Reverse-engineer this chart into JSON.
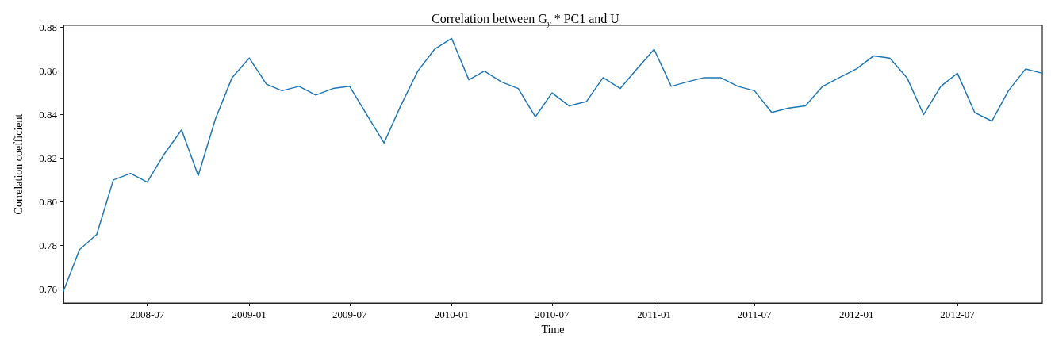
{
  "chart_data": {
    "type": "line",
    "title": "Correlation between G$_{y}$ * PC1 and U",
    "xlabel": "Time",
    "ylabel": "Correlation coefficient",
    "x": [
      "2008-02",
      "2008-03",
      "2008-04",
      "2008-05",
      "2008-06",
      "2008-07",
      "2008-08",
      "2008-09",
      "2008-10",
      "2008-11",
      "2008-12",
      "2009-01",
      "2009-02",
      "2009-03",
      "2009-04",
      "2009-05",
      "2009-06",
      "2009-07",
      "2009-08",
      "2009-09",
      "2009-10",
      "2009-11",
      "2009-12",
      "2010-01",
      "2010-02",
      "2010-03",
      "2010-04",
      "2010-05",
      "2010-06",
      "2010-07",
      "2010-08",
      "2010-09",
      "2010-10",
      "2010-11",
      "2010-12",
      "2011-01",
      "2011-02",
      "2011-03",
      "2011-04",
      "2011-05",
      "2011-06",
      "2011-07",
      "2011-08",
      "2011-09",
      "2011-10",
      "2011-11",
      "2011-12",
      "2012-01",
      "2012-02",
      "2012-03",
      "2012-04",
      "2012-05",
      "2012-06",
      "2012-07",
      "2012-08",
      "2012-09",
      "2012-10",
      "2012-11",
      "2012-12"
    ],
    "series": [
      {
        "color": "#1f77b4",
        "values": [
          0.759,
          0.778,
          0.785,
          0.81,
          0.813,
          0.809,
          0.822,
          0.833,
          0.812,
          0.838,
          0.857,
          0.866,
          0.854,
          0.851,
          0.853,
          0.849,
          0.852,
          0.853,
          0.84,
          0.827,
          0.844,
          0.86,
          0.87,
          0.875,
          0.856,
          0.86,
          0.855,
          0.852,
          0.839,
          0.85,
          0.844,
          0.846,
          0.857,
          0.852,
          0.861,
          0.87,
          0.853,
          0.855,
          0.857,
          0.857,
          0.853,
          0.851,
          0.841,
          0.843,
          0.844,
          0.853,
          0.857,
          0.861,
          0.867,
          0.866,
          0.857,
          0.84,
          0.853,
          0.859,
          0.841,
          0.837,
          0.851,
          0.861,
          0.859
        ]
      }
    ],
    "xlim": [
      "2008-02",
      "2012-12"
    ],
    "xticks": [
      "2008-07",
      "2009-01",
      "2009-07",
      "2010-01",
      "2010-07",
      "2011-01",
      "2011-07",
      "2012-01",
      "2012-07"
    ],
    "ylim": [
      0.7535,
      0.881
    ],
    "yticks": [
      0.76,
      0.78,
      {
        "value": 0.8,
        "label": "0.80"
      },
      0.82,
      0.84,
      0.86,
      0.88
    ],
    "grid": false,
    "marker": "none",
    "line_style": "solid"
  }
}
